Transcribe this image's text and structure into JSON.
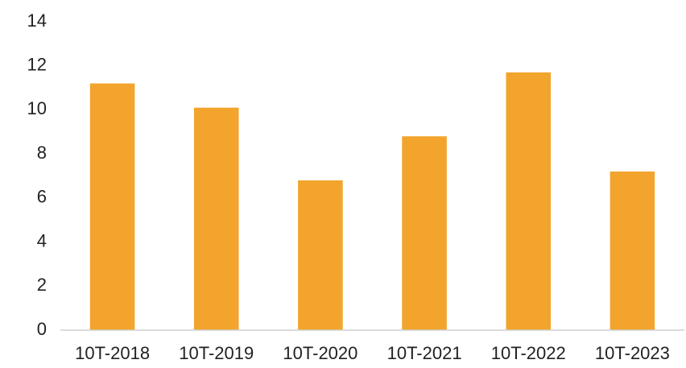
{
  "chart_data": {
    "type": "bar",
    "categories": [
      "10T-2018",
      "10T-2019",
      "10T-2020",
      "10T-2021",
      "10T-2022",
      "10T-2023"
    ],
    "values": [
      11.2,
      10.1,
      6.8,
      8.8,
      11.7,
      7.2
    ],
    "color": "#f2a42c",
    "ylim": [
      0,
      14
    ],
    "yticks": [
      0,
      2,
      4,
      6,
      8,
      10,
      12,
      14
    ],
    "grid": false
  }
}
